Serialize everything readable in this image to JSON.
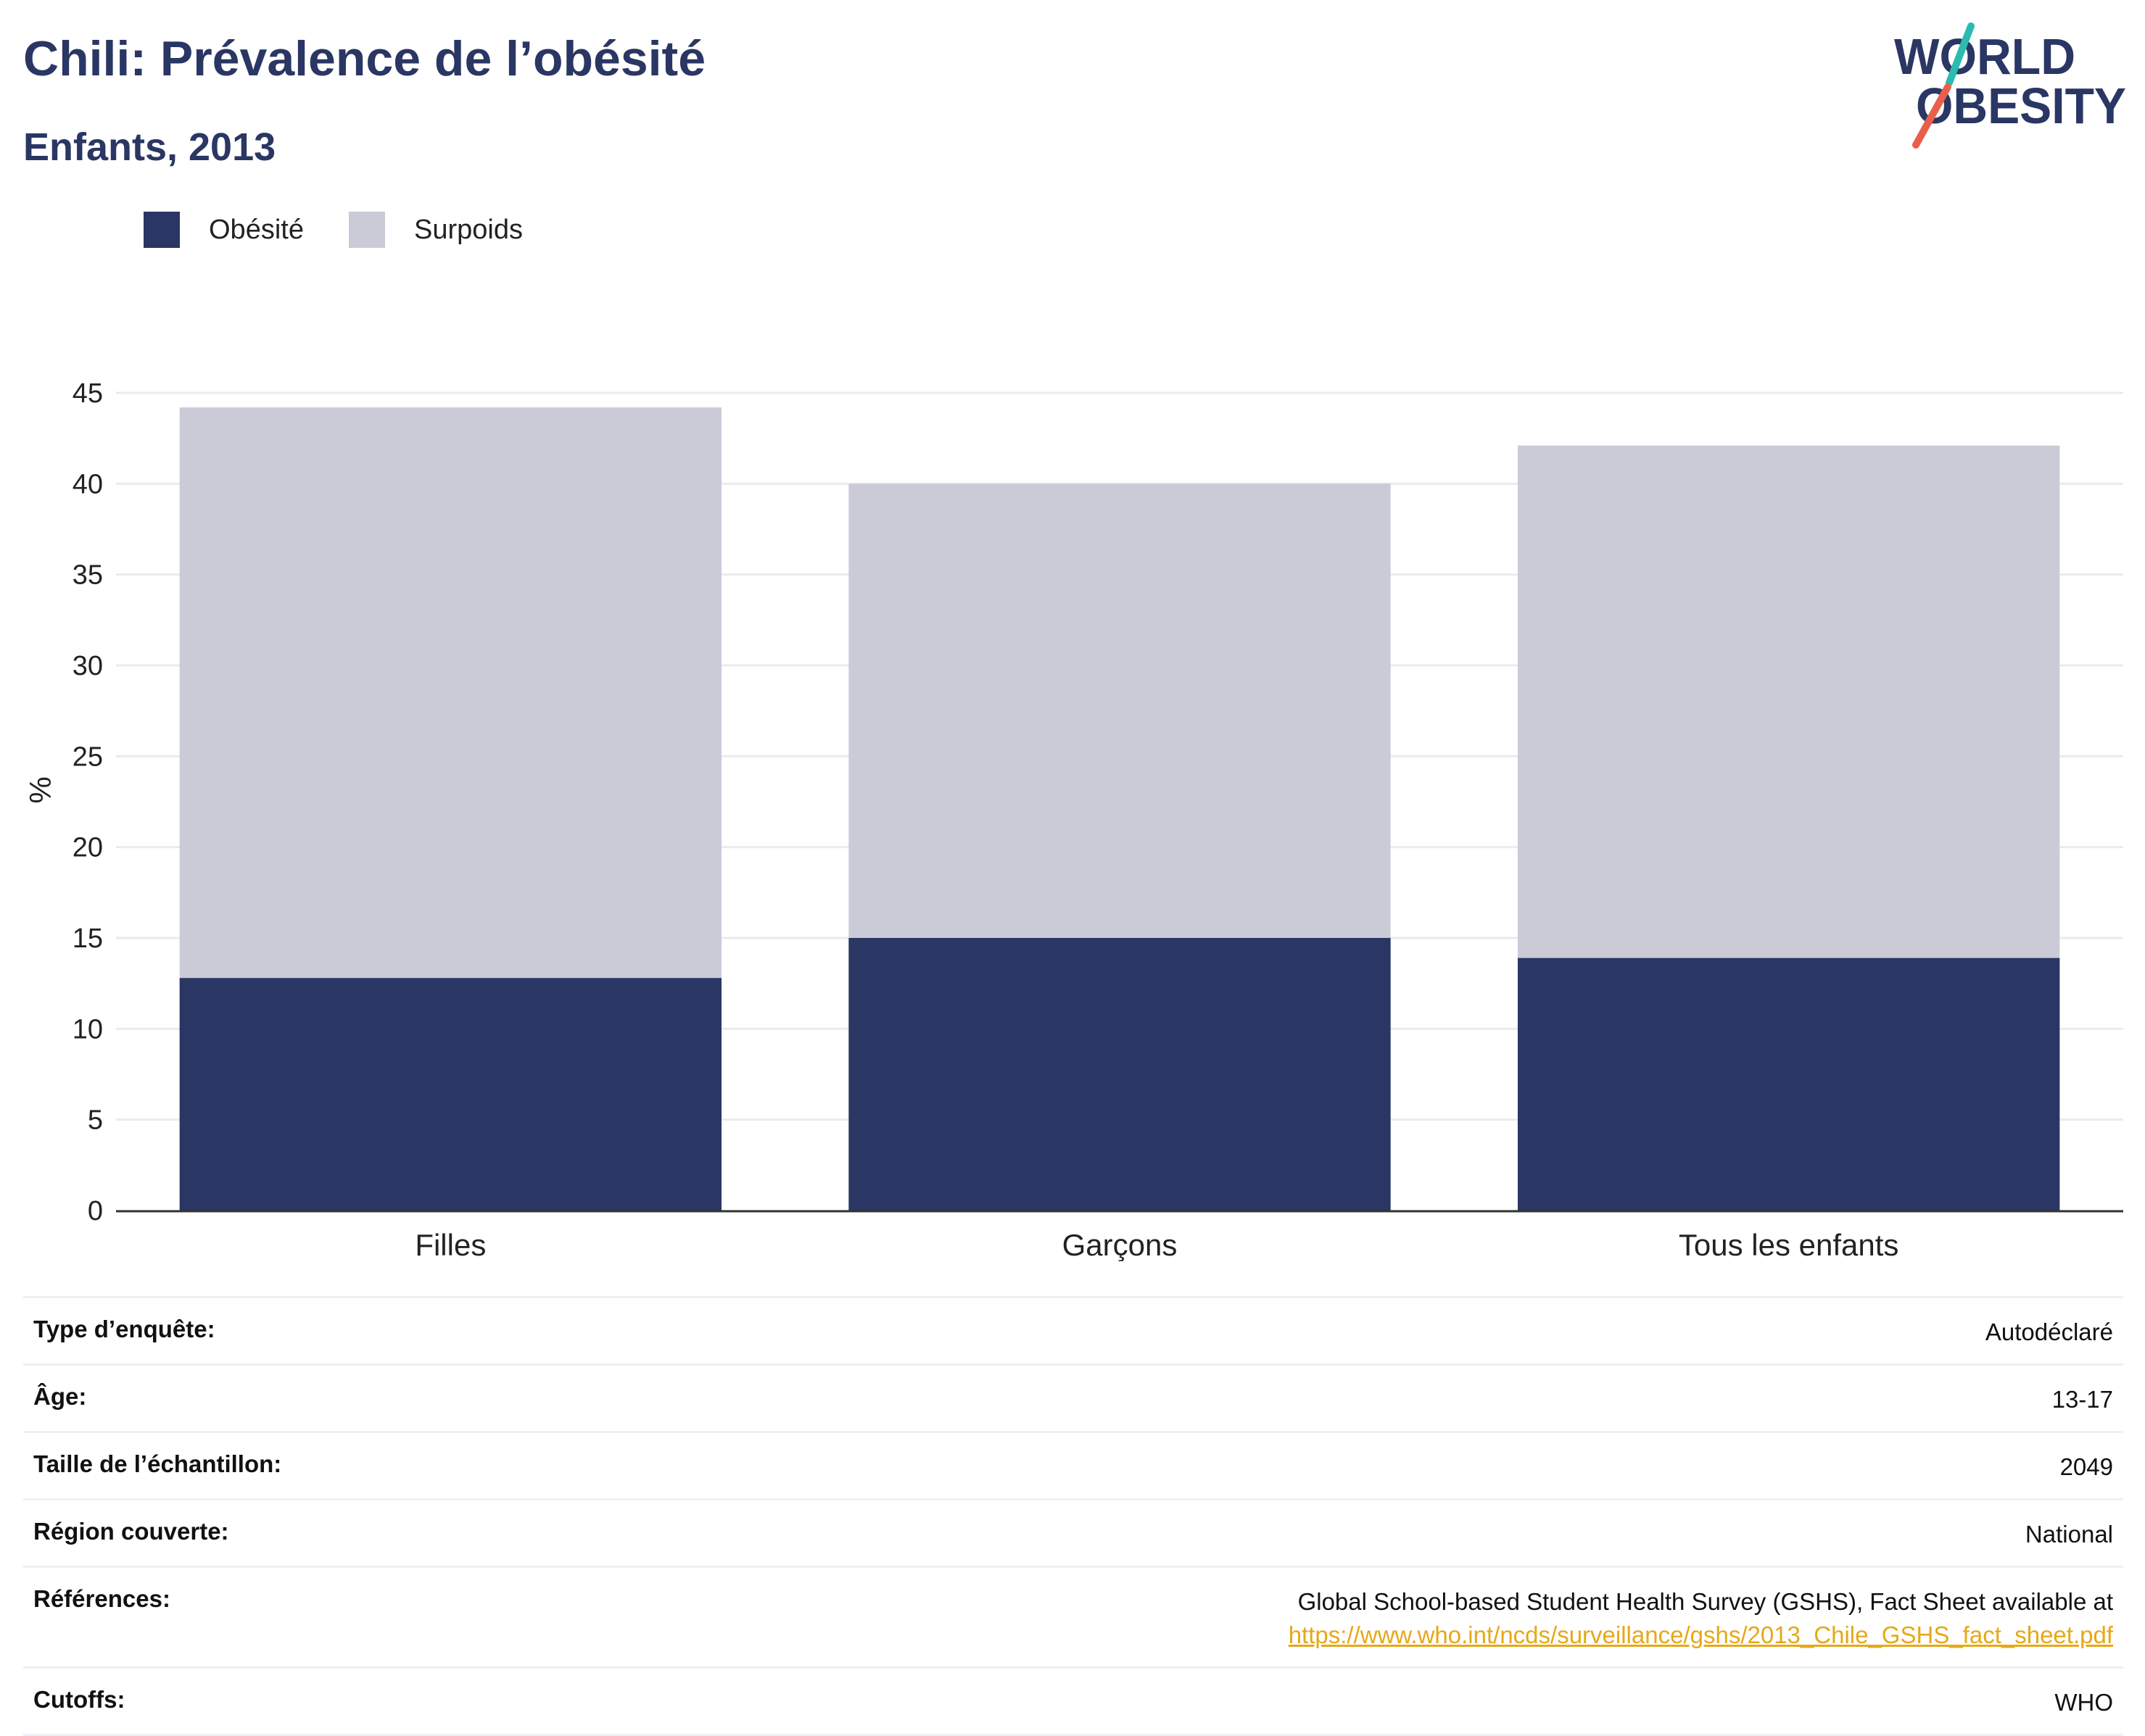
{
  "header": {
    "title": "Chili: Prévalence de l’obésité",
    "subtitle": "Enfants, 2013"
  },
  "logo": {
    "line1": "WORLD",
    "line2": "OBESITY",
    "colors": {
      "text": "#2a3663",
      "slash_top": "#2bbbb0",
      "slash_bottom": "#e8604c"
    }
  },
  "legend": {
    "items": [
      {
        "label": "Obésité",
        "color": "#2a3663"
      },
      {
        "label": "Surpoids",
        "color": "#cacbd7"
      }
    ]
  },
  "chart_data": {
    "type": "bar",
    "stacked": true,
    "categories": [
      "Filles",
      "Garçons",
      "Tous les enfants"
    ],
    "series": [
      {
        "name": "Obésité",
        "color": "#2a3663",
        "values": [
          12.8,
          15.0,
          13.9
        ]
      },
      {
        "name": "Surpoids",
        "color": "#cacbd7",
        "values": [
          31.4,
          25.0,
          28.2
        ]
      }
    ],
    "ylabel": "%",
    "xlabel": "",
    "ylim": [
      0,
      45
    ],
    "yticks": [
      0,
      5,
      10,
      15,
      20,
      25,
      30,
      35,
      40,
      45
    ],
    "grid": true,
    "legend_position": "top-left"
  },
  "info": {
    "rows": [
      {
        "key": "Type d’enquête:",
        "value": "Autodéclaré"
      },
      {
        "key": "Âge:",
        "value": "13-17"
      },
      {
        "key": "Taille de l’échantillon:",
        "value": "2049"
      },
      {
        "key": "Région couverte:",
        "value": "National"
      },
      {
        "key": "Références:",
        "value": "Global School-based Student Health Survey (GSHS), Fact Sheet available at",
        "link": "https://www.who.int/ncds/surveillance/gshs/2013_Chile_GSHS_fact_sheet.pdf"
      },
      {
        "key": "Cutoffs:",
        "value": "WHO"
      }
    ]
  }
}
